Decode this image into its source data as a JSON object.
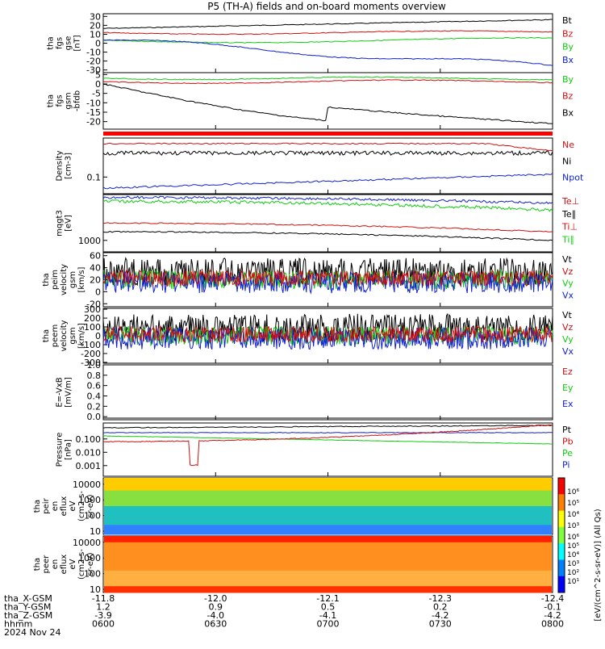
{
  "title": "P5 (TH-A) fields and on-board moments overview",
  "date": "2024 Nov 24",
  "colors": {
    "black": "#000000",
    "red": "#d01010",
    "green": "#10cc10",
    "blue": "#1020d0",
    "bar": "#ff0000"
  },
  "chart_data": [
    {
      "type": "line",
      "ylabel_lines": [
        "tha",
        "fgs",
        "gse",
        "[nT]"
      ],
      "yticks": [
        "30",
        "20",
        "10",
        "0",
        "-10",
        "-20",
        "-30"
      ],
      "ylim": [
        -33,
        33
      ],
      "series": [
        {
          "name": "Bt",
          "color": "#000000"
        },
        {
          "name": "Bz",
          "color": "#d01010"
        },
        {
          "name": "By",
          "color": "#10cc10"
        },
        {
          "name": "Bx",
          "color": "#1020d0"
        }
      ]
    },
    {
      "type": "line",
      "ylabel_lines": [
        "tha",
        "fgs",
        "gsm",
        "-bfdb"
      ],
      "yticks": [
        "5",
        "0",
        "-5",
        "-10",
        "-15",
        "-20"
      ],
      "ylim": [
        -24,
        6
      ],
      "series": [
        {
          "name": "By",
          "color": "#10cc10"
        },
        {
          "name": "Bz",
          "color": "#d01010"
        },
        {
          "name": "Bx",
          "color": "#000000"
        }
      ]
    },
    {
      "type": "line",
      "ylabel_lines": [
        "Density",
        "[cm-3]"
      ],
      "yticks": [
        "0.1"
      ],
      "yscale": "log",
      "series": [
        {
          "name": "Ne",
          "color": "#d01010"
        },
        {
          "name": "Ni",
          "color": "#000000"
        },
        {
          "name": "Npot",
          "color": "#1020d0"
        }
      ]
    },
    {
      "type": "line",
      "ylabel_lines": [
        "mqgt3",
        "[eV]"
      ],
      "yticks": [
        "1000"
      ],
      "yscale": "log",
      "series": [
        {
          "name": "Te⊥",
          "color": "#d01010"
        },
        {
          "name": "Te∥",
          "color": "#000000"
        },
        {
          "name": "Ti⊥",
          "color": "#d01010"
        },
        {
          "name": "Ti∥",
          "color": "#10cc10"
        }
      ]
    },
    {
      "type": "line",
      "ylabel_lines": [
        "tha",
        "peim",
        "velocity",
        "gsm",
        "[km/s]"
      ],
      "yticks": [
        "60",
        "40",
        "20",
        "0",
        "-20"
      ],
      "ylim": [
        -25,
        65
      ],
      "series": [
        {
          "name": "Vt",
          "color": "#000000"
        },
        {
          "name": "Vz",
          "color": "#d01010"
        },
        {
          "name": "Vy",
          "color": "#10cc10"
        },
        {
          "name": "Vx",
          "color": "#1020d0"
        }
      ]
    },
    {
      "type": "line",
      "ylabel_lines": [
        "tha",
        "peem",
        "velocity",
        "gsm",
        "[km/s]"
      ],
      "yticks": [
        "300",
        "200",
        "100",
        "0",
        "-100",
        "-200",
        "-300"
      ],
      "ylim": [
        -310,
        310
      ],
      "series": [
        {
          "name": "Vt",
          "color": "#000000"
        },
        {
          "name": "Vz",
          "color": "#d01010"
        },
        {
          "name": "Vy",
          "color": "#10cc10"
        },
        {
          "name": "Vx",
          "color": "#1020d0"
        }
      ]
    },
    {
      "type": "line",
      "ylabel_lines": [
        "E=-VxB",
        "[mV/m]"
      ],
      "yticks": [
        "1.0",
        "0.8",
        "0.6",
        "0.4",
        "0.2",
        "0.0"
      ],
      "ylim": [
        -0.06,
        1.0
      ],
      "series": [
        {
          "name": "Ez",
          "color": "#d01010"
        },
        {
          "name": "Ey",
          "color": "#10cc10"
        },
        {
          "name": "Ex",
          "color": "#1020d0"
        }
      ]
    },
    {
      "type": "line",
      "ylabel_lines": [
        "Pressure",
        "[nPa]"
      ],
      "yticks": [
        "0.100",
        "0.010",
        "0.001"
      ],
      "yscale": "log",
      "series": [
        {
          "name": "Pt",
          "color": "#000000"
        },
        {
          "name": "Pb",
          "color": "#d01010"
        },
        {
          "name": "Pe",
          "color": "#10cc10"
        },
        {
          "name": "Pi",
          "color": "#1020d0"
        }
      ]
    },
    {
      "type": "heatmap",
      "ylabel_lines": [
        "tha",
        "peir",
        "en",
        "eflux",
        "eV",
        "(cm2-s-",
        "sr-eV)"
      ],
      "yticks": [
        "10000",
        "1000",
        "100",
        "10"
      ],
      "yscale": "log"
    },
    {
      "type": "heatmap",
      "ylabel_lines": [
        "tha",
        "peer",
        "en",
        "eflux",
        "eV",
        "(cm2-s-",
        "sr-eV)"
      ],
      "yticks": [
        "10000",
        "1000",
        "100",
        "10"
      ],
      "yscale": "log"
    }
  ],
  "colorbar": {
    "label": "[eV/(cm^2-s-sr-eV)] (All Qs)",
    "ticks_top": [
      "10⁶",
      "10⁵",
      "10⁴",
      "10³"
    ],
    "ticks_bottom": [
      "10⁶",
      "10⁵",
      "10⁴",
      "10³",
      "10²",
      "10¹"
    ]
  },
  "time_axis": {
    "row_labels": [
      "tha_X-GSM",
      "tha_Y-GSM",
      "tha_Z-GSM",
      "hhmm",
      "2024 Nov 24"
    ],
    "ticks": [
      {
        "x": "-11.8",
        "y": "1.2",
        "z": "-3.9",
        "t": "0600"
      },
      {
        "x": "-12.0",
        "y": "0.9",
        "z": "-4.0",
        "t": "0630"
      },
      {
        "x": "-12.1",
        "y": "0.5",
        "z": "-4.1",
        "t": "0700"
      },
      {
        "x": "-12.3",
        "y": "0.2",
        "z": "-4.2",
        "t": "0730"
      },
      {
        "x": "-12.4",
        "y": "-0.1",
        "z": "-4.2",
        "t": "0800"
      }
    ]
  }
}
